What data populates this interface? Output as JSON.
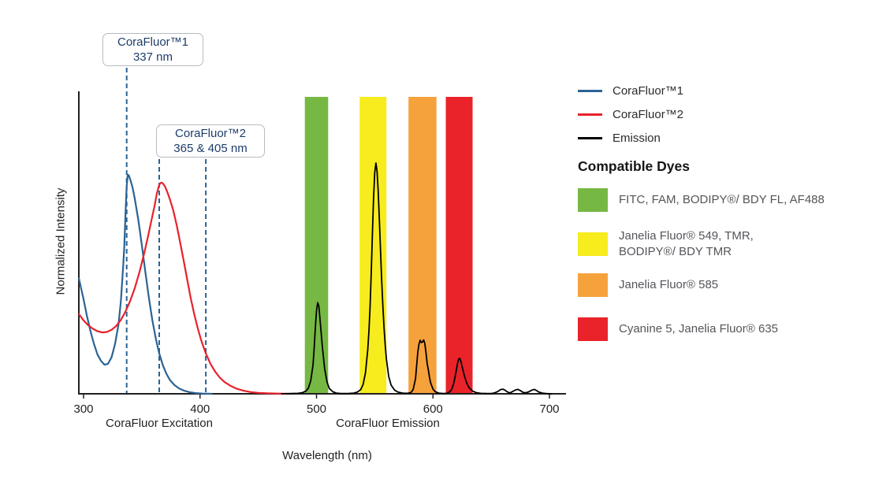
{
  "axis": {
    "y_label": "Normalized Intensity",
    "x_label": "Wavelength (nm)",
    "excitation_caption": "CoraFluor Excitation",
    "emission_caption": "CoraFluor Emission"
  },
  "callouts": [
    {
      "line1": "CoraFluor™1",
      "line2": "337 nm"
    },
    {
      "line1": "CoraFluor™2",
      "line2": "365 & 405 nm"
    }
  ],
  "legend": {
    "items": [
      {
        "label": "CoraFluor™1",
        "key": "corafluor1",
        "color": "#2b6394"
      },
      {
        "label": "CoraFluor™2",
        "key": "corafluor2",
        "color": "#e6232b"
      },
      {
        "label": "Emission",
        "key": "emission",
        "color": "#000000"
      }
    ]
  },
  "compatible_dyes": {
    "heading": "Compatible Dyes",
    "items": [
      {
        "color": "#76b843",
        "label": "FITC, FAM, BODIPY®/ BDY FL, AF488"
      },
      {
        "color": "#f7ec1e",
        "label": "Janelia Fluor® 549, TMR, BODIPY®/ BDY TMR"
      },
      {
        "color": "#f5a23c",
        "label": "Janelia Fluor® 585"
      },
      {
        "color": "#e92329",
        "label": "Cyanine 5, Janelia Fluor® 635"
      }
    ]
  },
  "chart_data": {
    "type": "line",
    "title": "CoraFluor excitation and emission spectra with compatible dyes",
    "xlabel": "Wavelength (nm)",
    "ylabel": "Normalized Intensity",
    "xlim": [
      296,
      715
    ],
    "ylim": [
      0,
      1.05
    ],
    "x_ticks": [
      300,
      400,
      500,
      600,
      700
    ],
    "grid": false,
    "legend_position": "right",
    "axis_section_labels": [
      "CoraFluor Excitation",
      "CoraFluor Emission"
    ],
    "vlines": [
      {
        "x": 337,
        "label": "CoraFluor™1 337 nm",
        "style": "dashed",
        "color": "#2b6394"
      },
      {
        "x": 365,
        "label": "CoraFluor™2 365 nm",
        "style": "dashed",
        "color": "#2b6394"
      },
      {
        "x": 405,
        "label": "CoraFluor™2 405 nm",
        "style": "dashed",
        "color": "#2b6394"
      }
    ],
    "bands": [
      {
        "name": "green",
        "range": [
          490,
          510
        ],
        "color": "#76b843",
        "dyes": "FITC, FAM, BODIPY®/ BDY FL, AF488"
      },
      {
        "name": "yellow",
        "range": [
          537,
          560
        ],
        "color": "#f7ec1e",
        "dyes": "Janelia Fluor® 549, TMR, BODIPY®/ BDY TMR"
      },
      {
        "name": "orange",
        "range": [
          579,
          603
        ],
        "color": "#f5a23c",
        "dyes": "Janelia Fluor® 585"
      },
      {
        "name": "red",
        "range": [
          611,
          634
        ],
        "color": "#e92329",
        "dyes": "Cyanine 5, Janelia Fluor® 635"
      }
    ],
    "series": [
      {
        "name": "CoraFluor™1",
        "key": "corafluor1",
        "role": "excitation",
        "color": "#2b6394",
        "peak_nm": 337,
        "points": [
          [
            296,
            0.5
          ],
          [
            298,
            0.455
          ],
          [
            300,
            0.41
          ],
          [
            303,
            0.335
          ],
          [
            306,
            0.27
          ],
          [
            309,
            0.215
          ],
          [
            312,
            0.17
          ],
          [
            315,
            0.142
          ],
          [
            318,
            0.126
          ],
          [
            321,
            0.13
          ],
          [
            324,
            0.158
          ],
          [
            327,
            0.215
          ],
          [
            330,
            0.3
          ],
          [
            332,
            0.4
          ],
          [
            334,
            0.55
          ],
          [
            335,
            0.64
          ],
          [
            336,
            0.78
          ],
          [
            337,
            0.9
          ],
          [
            338,
            0.95
          ],
          [
            339,
            0.945
          ],
          [
            340,
            0.93
          ],
          [
            342,
            0.895
          ],
          [
            344,
            0.845
          ],
          [
            347,
            0.755
          ],
          [
            350,
            0.645
          ],
          [
            353,
            0.53
          ],
          [
            356,
            0.42
          ],
          [
            359,
            0.32
          ],
          [
            362,
            0.24
          ],
          [
            365,
            0.175
          ],
          [
            368,
            0.125
          ],
          [
            371,
            0.088
          ],
          [
            374,
            0.061
          ],
          [
            378,
            0.038
          ],
          [
            382,
            0.023
          ],
          [
            386,
            0.014
          ],
          [
            391,
            0.007
          ],
          [
            396,
            0.003
          ],
          [
            402,
            0.001
          ],
          [
            410,
            0
          ]
        ]
      },
      {
        "name": "CoraFluor™2",
        "key": "corafluor2",
        "role": "excitation",
        "color": "#e6232b",
        "peak_nm": 365,
        "points": [
          [
            296,
            0.345
          ],
          [
            300,
            0.318
          ],
          [
            304,
            0.297
          ],
          [
            308,
            0.282
          ],
          [
            312,
            0.271
          ],
          [
            316,
            0.266
          ],
          [
            320,
            0.268
          ],
          [
            324,
            0.277
          ],
          [
            328,
            0.294
          ],
          [
            332,
            0.32
          ],
          [
            336,
            0.356
          ],
          [
            340,
            0.402
          ],
          [
            344,
            0.458
          ],
          [
            348,
            0.527
          ],
          [
            352,
            0.607
          ],
          [
            355,
            0.675
          ],
          [
            358,
            0.745
          ],
          [
            361,
            0.815
          ],
          [
            363,
            0.87
          ],
          [
            365,
            0.905
          ],
          [
            366,
            0.913
          ],
          [
            367,
            0.915
          ],
          [
            368,
            0.912
          ],
          [
            370,
            0.898
          ],
          [
            372,
            0.873
          ],
          [
            374,
            0.845
          ],
          [
            377,
            0.795
          ],
          [
            380,
            0.73
          ],
          [
            383,
            0.655
          ],
          [
            386,
            0.575
          ],
          [
            389,
            0.495
          ],
          [
            392,
            0.415
          ],
          [
            395,
            0.345
          ],
          [
            398,
            0.285
          ],
          [
            401,
            0.232
          ],
          [
            405,
            0.175
          ],
          [
            409,
            0.13
          ],
          [
            413,
            0.096
          ],
          [
            417,
            0.07
          ],
          [
            421,
            0.051
          ],
          [
            426,
            0.035
          ],
          [
            431,
            0.023
          ],
          [
            437,
            0.014
          ],
          [
            443,
            0.008
          ],
          [
            450,
            0.004
          ],
          [
            458,
            0.002
          ],
          [
            466,
            0.001
          ],
          [
            475,
            0
          ]
        ]
      },
      {
        "name": "Emission",
        "key": "emission",
        "role": "emission",
        "color": "#000000",
        "peak_nm": 550,
        "points": [
          [
            470,
            0
          ],
          [
            478,
            0.001
          ],
          [
            484,
            0.002
          ],
          [
            488,
            0.005
          ],
          [
            491,
            0.012
          ],
          [
            493,
            0.025
          ],
          [
            495,
            0.055
          ],
          [
            497,
            0.125
          ],
          [
            498,
            0.195
          ],
          [
            499,
            0.285
          ],
          [
            500,
            0.36
          ],
          [
            501,
            0.395
          ],
          [
            502,
            0.38
          ],
          [
            503,
            0.325
          ],
          [
            504,
            0.265
          ],
          [
            505,
            0.205
          ],
          [
            507,
            0.11
          ],
          [
            509,
            0.052
          ],
          [
            511,
            0.023
          ],
          [
            514,
            0.009
          ],
          [
            517,
            0.003
          ],
          [
            521,
            0.001
          ],
          [
            527,
            0.001
          ],
          [
            532,
            0.003
          ],
          [
            535,
            0.007
          ],
          [
            538,
            0.018
          ],
          [
            540,
            0.04
          ],
          [
            542,
            0.09
          ],
          [
            544,
            0.19
          ],
          [
            545,
            0.27
          ],
          [
            546,
            0.38
          ],
          [
            547,
            0.52
          ],
          [
            548,
            0.69
          ],
          [
            549,
            0.85
          ],
          [
            550,
            0.96
          ],
          [
            551,
            1.0
          ],
          [
            552,
            0.965
          ],
          [
            553,
            0.875
          ],
          [
            554,
            0.75
          ],
          [
            555,
            0.615
          ],
          [
            556,
            0.49
          ],
          [
            557,
            0.38
          ],
          [
            558,
            0.285
          ],
          [
            559,
            0.21
          ],
          [
            560,
            0.15
          ],
          [
            562,
            0.075
          ],
          [
            564,
            0.038
          ],
          [
            567,
            0.016
          ],
          [
            570,
            0.007
          ],
          [
            574,
            0.003
          ],
          [
            578,
            0.002
          ],
          [
            581,
            0.005
          ],
          [
            583,
            0.018
          ],
          [
            585,
            0.065
          ],
          [
            586,
            0.125
          ],
          [
            587,
            0.18
          ],
          [
            588,
            0.215
          ],
          [
            589,
            0.232
          ],
          [
            590,
            0.222
          ],
          [
            591,
            0.225
          ],
          [
            592,
            0.233
          ],
          [
            593,
            0.218
          ],
          [
            594,
            0.178
          ],
          [
            595,
            0.13
          ],
          [
            596,
            0.105
          ],
          [
            597,
            0.072
          ],
          [
            598,
            0.047
          ],
          [
            600,
            0.02
          ],
          [
            602,
            0.009
          ],
          [
            605,
            0.003
          ],
          [
            609,
            0.001
          ],
          [
            612,
            0.002
          ],
          [
            614,
            0.007
          ],
          [
            616,
            0.018
          ],
          [
            618,
            0.048
          ],
          [
            620,
            0.1
          ],
          [
            621,
            0.13
          ],
          [
            622,
            0.15
          ],
          [
            623,
            0.154
          ],
          [
            624,
            0.14
          ],
          [
            625,
            0.118
          ],
          [
            627,
            0.078
          ],
          [
            629,
            0.046
          ],
          [
            631,
            0.026
          ],
          [
            634,
            0.012
          ],
          [
            637,
            0.005
          ],
          [
            641,
            0.002
          ],
          [
            646,
            0.001
          ],
          [
            650,
            0.001
          ],
          [
            653,
            0.004
          ],
          [
            656,
            0.011
          ],
          [
            658,
            0.018
          ],
          [
            660,
            0.02
          ],
          [
            662,
            0.015
          ],
          [
            664,
            0.008
          ],
          [
            666,
            0.004
          ],
          [
            668,
            0.009
          ],
          [
            671,
            0.017
          ],
          [
            673,
            0.019
          ],
          [
            675,
            0.014
          ],
          [
            677,
            0.007
          ],
          [
            679,
            0.004
          ],
          [
            682,
            0.008
          ],
          [
            685,
            0.016
          ],
          [
            687,
            0.019
          ],
          [
            689,
            0.014
          ],
          [
            691,
            0.007
          ],
          [
            694,
            0.003
          ],
          [
            697,
            0.001
          ],
          [
            702,
            0
          ]
        ]
      }
    ]
  }
}
